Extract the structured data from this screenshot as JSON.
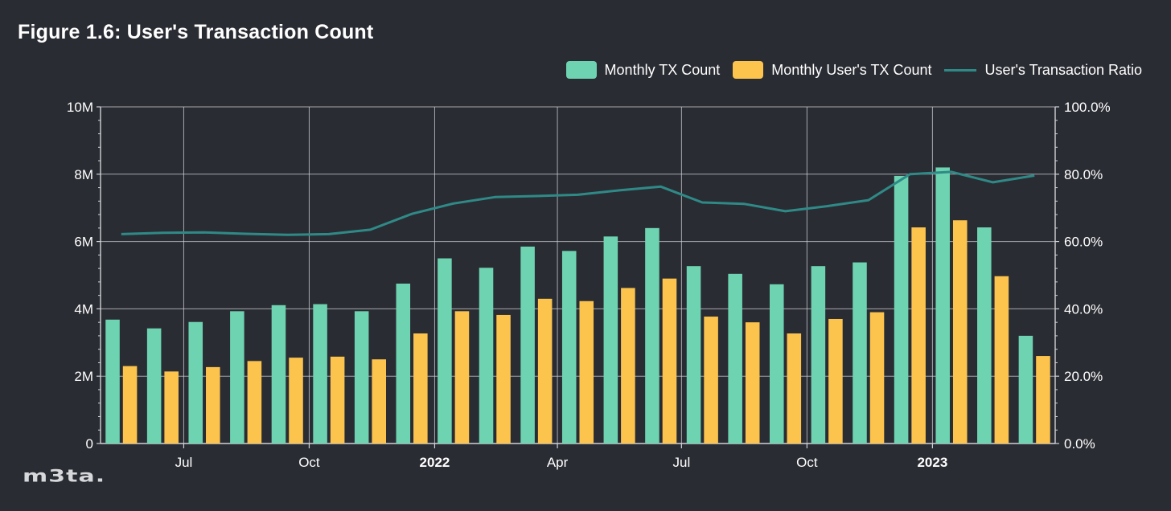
{
  "title": "Figure 1.6: User's Transaction Count",
  "colors": {
    "background": "#2a2c33",
    "tx": "#6dd3b0",
    "user_tx": "#fcc44d",
    "ratio": "#2f8a87",
    "grid": "#cfd2d8"
  },
  "legend": {
    "tx_label": "Monthly TX Count",
    "user_tx_label": "Monthly User's TX Count",
    "ratio_label": "User's Transaction Ratio"
  },
  "logo_text": "m3ta.",
  "chart_data": {
    "type": "bar",
    "categories": [
      "2021-05",
      "2021-06",
      "2021-07",
      "2021-08",
      "2021-09",
      "2021-10",
      "2021-11",
      "2021-12",
      "2022-01",
      "2022-02",
      "2022-03",
      "2022-04",
      "2022-05",
      "2022-06",
      "2022-07",
      "2022-08",
      "2022-09",
      "2022-10",
      "2022-11",
      "2022-12",
      "2023-01",
      "2023-02",
      "2023-03"
    ],
    "series": [
      {
        "name": "Monthly TX Count",
        "axis": "left",
        "values": [
          3.68,
          3.42,
          3.61,
          3.93,
          4.11,
          4.14,
          3.93,
          4.75,
          5.5,
          5.22,
          5.85,
          5.72,
          6.15,
          6.4,
          5.27,
          5.04,
          4.73,
          5.27,
          5.38,
          7.95,
          8.2,
          6.42,
          3.2
        ]
      },
      {
        "name": "Monthly User's TX Count",
        "axis": "left",
        "values": [
          2.3,
          2.14,
          2.27,
          2.45,
          2.55,
          2.58,
          2.5,
          3.27,
          3.93,
          3.82,
          4.3,
          4.23,
          4.62,
          4.9,
          3.77,
          3.6,
          3.27,
          3.7,
          3.9,
          6.42,
          6.63,
          4.97,
          2.6
        ]
      },
      {
        "name": "User's Transaction Ratio",
        "type": "line",
        "axis": "right",
        "values": [
          62.2,
          62.6,
          62.7,
          62.3,
          62.0,
          62.2,
          63.5,
          68.2,
          71.3,
          73.2,
          73.5,
          73.9,
          75.2,
          76.3,
          71.6,
          71.2,
          69.0,
          70.5,
          72.3,
          80.0,
          80.7,
          77.6,
          79.6
        ]
      }
    ],
    "x_ticks": [
      {
        "label": "Jul",
        "date": "2021-07-01",
        "bold": false
      },
      {
        "label": "Oct",
        "date": "2021-10-01",
        "bold": false
      },
      {
        "label": "2022",
        "date": "2022-01-01",
        "bold": true
      },
      {
        "label": "Apr",
        "date": "2022-04-01",
        "bold": false
      },
      {
        "label": "Jul",
        "date": "2022-07-01",
        "bold": false
      },
      {
        "label": "Oct",
        "date": "2022-10-01",
        "bold": false
      },
      {
        "label": "2023",
        "date": "2023-01-01",
        "bold": true
      }
    ],
    "y_left": {
      "unit": "millions",
      "ticks": [
        "0",
        "2M",
        "4M",
        "6M",
        "8M",
        "10M"
      ],
      "ylim": [
        0,
        10
      ]
    },
    "y_right": {
      "unit": "percent",
      "ticks": [
        "0.0%",
        "20.0%",
        "40.0%",
        "60.0%",
        "80.0%",
        "100.0%"
      ],
      "ylim": [
        0,
        100
      ]
    },
    "grid": true,
    "legend_position": "top-right"
  }
}
